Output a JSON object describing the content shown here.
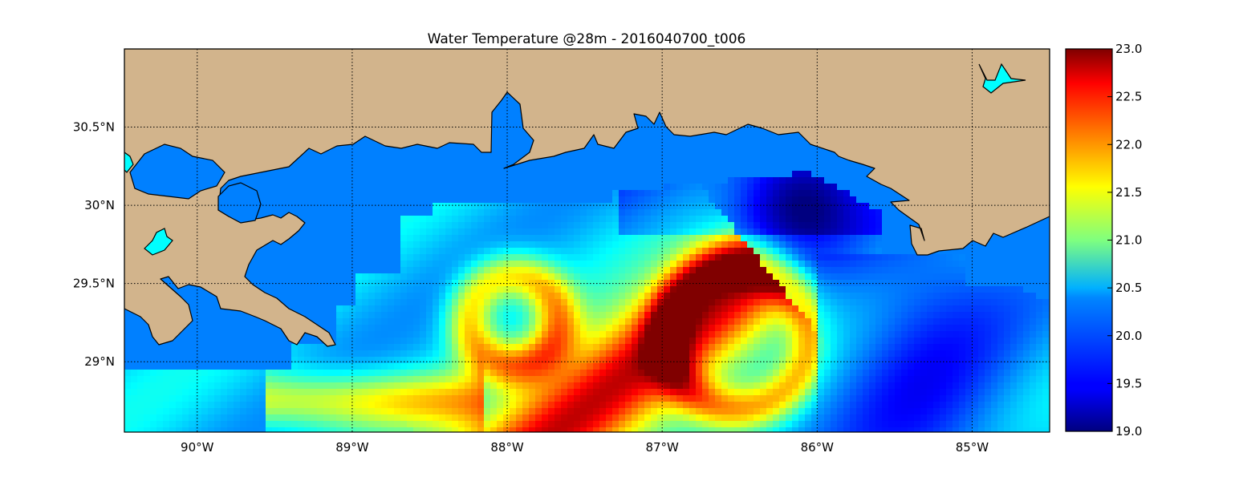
{
  "title": "Water Temperature @28m - 2016040700_t006",
  "map": {
    "lon_range": [
      -90.47,
      -84.5
    ],
    "lat_range": [
      28.55,
      31.0
    ],
    "x_ticks": [
      {
        "lon": -90,
        "label": "90°W"
      },
      {
        "lon": -89,
        "label": "89°W"
      },
      {
        "lon": -88,
        "label": "88°W"
      },
      {
        "lon": -87,
        "label": "87°W"
      },
      {
        "lon": -86,
        "label": "86°W"
      },
      {
        "lon": -85,
        "label": "85°W"
      }
    ],
    "y_ticks": [
      {
        "lat": 30.5,
        "label": "30.5°N"
      },
      {
        "lat": 30.0,
        "label": "30°N"
      },
      {
        "lat": 29.5,
        "label": "29.5°N"
      },
      {
        "lat": 29.0,
        "label": "29°N"
      }
    ],
    "grid": true,
    "land_color": "#d2b48c",
    "lake_color": "#00ffff",
    "nodata_ocean_color": "#0080ff"
  },
  "colorbar": {
    "min": 19.0,
    "max": 23.0,
    "colormap": "jet",
    "ticks": [
      "19.0",
      "19.5",
      "20.0",
      "20.5",
      "21.0",
      "21.5",
      "22.0",
      "22.5",
      "23.0"
    ]
  }
}
